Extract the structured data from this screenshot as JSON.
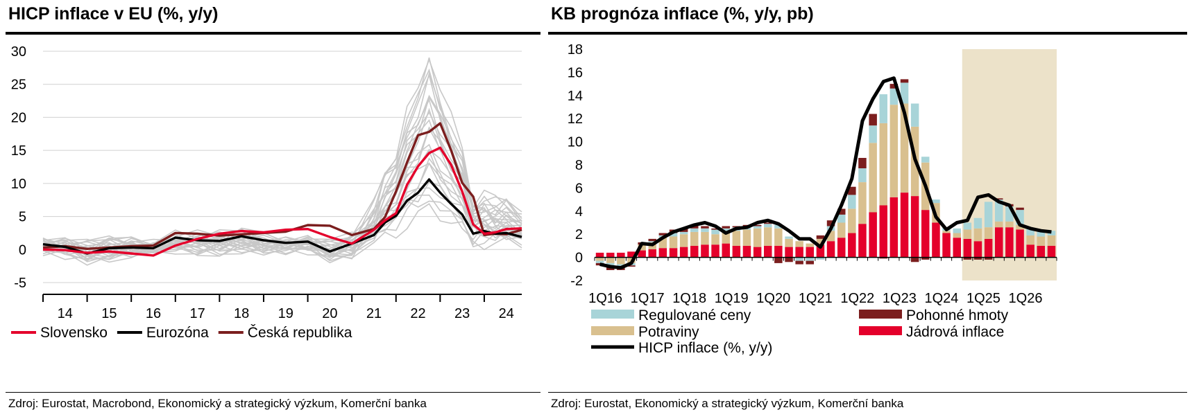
{
  "left_panel": {
    "title": "HICP inflace v EU (%, y/y)",
    "source": "Zdroj: Eurostat, Macrobond, Ekonomický a strategický výzkum, Komerční banka"
  },
  "right_panel": {
    "title": "KB prognóza inflace (%, y/y, pb)",
    "source": "Zdroj: Eurostat, Ekonomický a strategický výzkum, Komerční banka"
  },
  "chart_data": [
    {
      "type": "line",
      "title": "HICP inflace v EU (%, y/y)",
      "ylim": [
        -5,
        30
      ],
      "yticks": [
        -5,
        0,
        5,
        10,
        15,
        20,
        25,
        30
      ],
      "xticks": [
        "14",
        "15",
        "16",
        "17",
        "18",
        "19",
        "20",
        "21",
        "22",
        "23",
        "24"
      ],
      "x_range": [
        2014.0,
        2024.85
      ],
      "background_series_color": "#c8c8c8",
      "legend": "bottom",
      "series": [
        {
          "name": "Slovensko",
          "color": "#e4002b",
          "x": [
            2014.0,
            2014.5,
            2015.0,
            2015.5,
            2016.0,
            2016.5,
            2017.0,
            2017.5,
            2018.0,
            2018.5,
            2019.0,
            2019.5,
            2020.0,
            2020.5,
            2021.0,
            2021.5,
            2021.75,
            2022.0,
            2022.25,
            2022.5,
            2022.75,
            2023.0,
            2023.25,
            2023.5,
            2023.75,
            2024.0,
            2024.25,
            2024.5,
            2024.85
          ],
          "y": [
            0.0,
            -0.1,
            -0.5,
            -0.3,
            -0.6,
            -0.9,
            0.6,
            1.6,
            2.4,
            2.8,
            2.6,
            3.0,
            3.1,
            1.9,
            0.9,
            3.0,
            4.4,
            5.5,
            9.8,
            12.6,
            14.6,
            15.4,
            12.8,
            8.8,
            3.8,
            2.4,
            2.6,
            3.1,
            3.2
          ]
        },
        {
          "name": "Eurozóna",
          "color": "#000000",
          "x": [
            2014.0,
            2014.5,
            2015.0,
            2015.5,
            2016.0,
            2016.5,
            2017.0,
            2017.5,
            2018.0,
            2018.5,
            2019.0,
            2019.5,
            2020.0,
            2020.5,
            2021.0,
            2021.5,
            2021.75,
            2022.0,
            2022.25,
            2022.5,
            2022.75,
            2023.0,
            2023.25,
            2023.5,
            2023.75,
            2024.0,
            2024.25,
            2024.5,
            2024.85
          ],
          "y": [
            0.8,
            0.4,
            -0.6,
            0.2,
            0.3,
            0.2,
            1.8,
            1.4,
            1.3,
            2.0,
            1.4,
            1.0,
            1.2,
            -0.3,
            0.9,
            2.2,
            4.1,
            5.1,
            7.4,
            8.6,
            10.6,
            8.6,
            6.9,
            5.3,
            2.4,
            2.8,
            2.4,
            2.5,
            1.9
          ]
        },
        {
          "name": "Česká republika",
          "color": "#7b1e1e",
          "x": [
            2014.0,
            2014.5,
            2015.0,
            2015.5,
            2016.0,
            2016.5,
            2017.0,
            2017.5,
            2018.0,
            2018.5,
            2019.0,
            2019.5,
            2020.0,
            2020.5,
            2021.0,
            2021.5,
            2021.75,
            2022.0,
            2022.25,
            2022.5,
            2022.75,
            2023.0,
            2023.25,
            2023.5,
            2023.75,
            2024.0,
            2024.25,
            2024.5,
            2024.85
          ],
          "y": [
            0.3,
            0.5,
            0.1,
            0.3,
            0.5,
            0.6,
            2.5,
            2.4,
            2.1,
            2.3,
            2.5,
            2.7,
            3.7,
            3.6,
            2.2,
            3.1,
            4.9,
            8.8,
            13.2,
            17.3,
            17.8,
            19.1,
            15.0,
            10.1,
            8.0,
            2.2,
            2.4,
            2.3,
            3.0
          ]
        }
      ]
    },
    {
      "type": "bar",
      "title": "KB prognóza inflace (%, y/y, pb)",
      "stacked": true,
      "ylim": [
        -2,
        18
      ],
      "yticks": [
        -2,
        0,
        2,
        4,
        6,
        8,
        10,
        12,
        14,
        16,
        18
      ],
      "xticks": [
        "1Q16",
        "1Q17",
        "1Q18",
        "1Q19",
        "1Q20",
        "1Q21",
        "1Q22",
        "1Q23",
        "1Q24",
        "1Q25",
        "1Q26"
      ],
      "forecast_shading_start_index": 35,
      "forecast_shading_color": "#ece2c9",
      "legend": "bottom",
      "categories": [
        "1Q16",
        "2Q16",
        "3Q16",
        "4Q16",
        "1Q17",
        "2Q17",
        "3Q17",
        "4Q17",
        "1Q18",
        "2Q18",
        "3Q18",
        "4Q18",
        "1Q19",
        "2Q19",
        "3Q19",
        "4Q19",
        "1Q20",
        "2Q20",
        "3Q20",
        "4Q20",
        "1Q21",
        "2Q21",
        "3Q21",
        "4Q21",
        "1Q22",
        "2Q22",
        "3Q22",
        "4Q22",
        "1Q23",
        "2Q23",
        "3Q23",
        "4Q23",
        "1Q24",
        "2Q24",
        "3Q24",
        "4Q24",
        "1Q25",
        "2Q25",
        "3Q25",
        "4Q25",
        "1Q26",
        "2Q26",
        "3Q26",
        "4Q26"
      ],
      "series": [
        {
          "name": "Jádrová inflace",
          "color": "#e4002b",
          "values": [
            0.4,
            0.4,
            0.4,
            0.5,
            0.6,
            0.7,
            0.8,
            0.8,
            0.9,
            1.0,
            1.1,
            1.1,
            1.2,
            1.0,
            1.0,
            0.9,
            1.0,
            1.0,
            0.9,
            0.9,
            0.9,
            1.1,
            1.4,
            1.7,
            2.1,
            2.9,
            3.9,
            4.5,
            5.2,
            5.6,
            5.3,
            4.1,
            3.0,
            2.1,
            1.7,
            1.6,
            1.4,
            1.6,
            2.6,
            2.6,
            2.4,
            1.1,
            1.0,
            1.0
          ]
        },
        {
          "name": "Potraviny",
          "color": "#d9c08f",
          "values": [
            -0.3,
            -0.5,
            -0.6,
            -0.5,
            0.5,
            0.6,
            0.9,
            1.0,
            1.1,
            1.2,
            1.1,
            0.9,
            1.1,
            1.3,
            1.4,
            1.6,
            1.6,
            1.5,
            0.7,
            0.5,
            0.3,
            0.5,
            0.9,
            1.3,
            2.1,
            3.6,
            6.0,
            7.1,
            8.0,
            7.7,
            6.0,
            4.1,
            1.7,
            0.2,
            0.4,
            0.8,
            1.1,
            1.0,
            0.5,
            0.5,
            0.4,
            0.8,
            0.8,
            0.9
          ]
        },
        {
          "name": "Regulované ceny",
          "color": "#a8d4d8",
          "values": [
            -0.2,
            -0.3,
            -0.3,
            -0.2,
            0.0,
            0.1,
            0.2,
            0.3,
            0.2,
            0.3,
            0.3,
            0.4,
            0.2,
            0.3,
            0.3,
            0.2,
            0.3,
            0.3,
            0.2,
            -0.3,
            -0.3,
            -0.2,
            0.4,
            0.7,
            1.2,
            1.2,
            1.5,
            2.5,
            1.4,
            1.8,
            2.0,
            0.5,
            0.3,
            0.3,
            0.4,
            0.6,
            0.9,
            2.2,
            1.9,
            1.3,
            1.3,
            0.6,
            0.5,
            0.4
          ]
        },
        {
          "name": "Pohonné hmoty",
          "color": "#7b1e1e",
          "values": [
            -0.2,
            -0.3,
            -0.2,
            -0.1,
            0.2,
            0.2,
            0.2,
            0.3,
            0.3,
            0.3,
            0.2,
            0.1,
            0.2,
            0.1,
            0.1,
            0.1,
            0.1,
            -0.5,
            -0.4,
            -0.3,
            -0.3,
            0.3,
            0.5,
            0.5,
            0.7,
            0.9,
            1.0,
            -0.1,
            0.4,
            0.3,
            -0.4,
            -0.2,
            0.0,
            0.0,
            0.0,
            -0.2,
            -0.2,
            -0.2,
            0.1,
            0.2,
            0.2,
            0.0,
            0.0,
            0.0
          ]
        },
        {
          "name": "HICP inflace (%, y/y)",
          "color": "#000000",
          "kind": "line",
          "values": [
            -0.6,
            -0.8,
            -0.9,
            -0.5,
            1.2,
            1.1,
            1.7,
            2.2,
            2.5,
            2.8,
            3.0,
            2.7,
            2.1,
            2.5,
            2.6,
            3.0,
            3.2,
            2.9,
            2.3,
            1.6,
            1.6,
            0.9,
            2.5,
            4.5,
            6.8,
            11.8,
            13.7,
            15.2,
            15.5,
            12.5,
            8.5,
            6.2,
            3.5,
            2.4,
            3.0,
            3.2,
            5.2,
            5.4,
            4.8,
            4.5,
            2.8,
            2.5,
            2.3,
            2.2
          ]
        }
      ]
    }
  ]
}
